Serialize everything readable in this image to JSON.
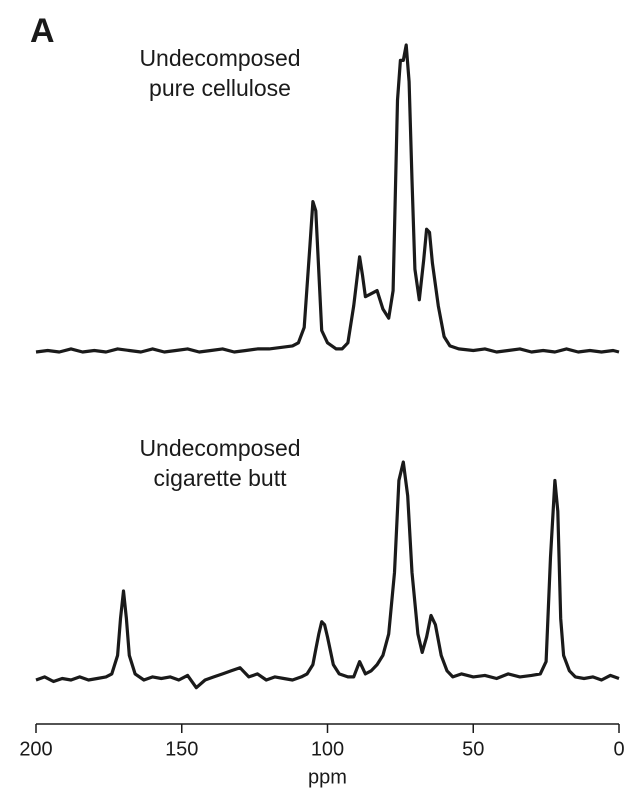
{
  "panel_label": "A",
  "chart_data": [
    {
      "type": "line",
      "annotation": [
        "Undecomposed",
        "pure cellulose"
      ],
      "color": "#1a1a1a",
      "xlim": [
        200,
        0
      ],
      "ylim": [
        0,
        100
      ],
      "x": [
        200,
        196,
        192,
        188,
        184,
        180,
        176,
        172,
        168,
        164,
        160,
        156,
        152,
        148,
        144,
        140,
        136,
        132,
        128,
        124,
        120,
        116,
        112,
        110,
        108,
        106,
        105,
        104,
        102,
        100,
        97,
        95,
        93,
        91,
        89,
        88,
        87,
        85,
        83,
        81,
        79,
        77.5,
        76,
        75,
        74,
        73,
        72,
        71,
        70,
        68.5,
        67,
        66,
        65,
        64,
        62,
        60,
        58,
        55,
        50,
        46,
        42,
        38,
        34,
        30,
        26,
        22,
        18,
        14,
        10,
        6,
        2,
        0
      ],
      "values": [
        0,
        0.5,
        0,
        1,
        0,
        0.5,
        0,
        1,
        0.5,
        0,
        1,
        0,
        0.5,
        1,
        0,
        0.5,
        1,
        0,
        0.5,
        1,
        1,
        1.5,
        2,
        3,
        8,
        35,
        49,
        46,
        7,
        3,
        1,
        1,
        3,
        15,
        31,
        25,
        18,
        19,
        20,
        14,
        11,
        20,
        82,
        95,
        95,
        100,
        88,
        56,
        27,
        17,
        30,
        40,
        39,
        29,
        15,
        5,
        2,
        1,
        0.5,
        1,
        0,
        0.5,
        1,
        0,
        0.5,
        0,
        1,
        0,
        0.5,
        0,
        0.5,
        0
      ]
    },
    {
      "type": "line",
      "annotation": [
        "Undecomposed",
        "cigarette butt"
      ],
      "color": "#1a1a1a",
      "xlim": [
        200,
        0
      ],
      "ylim": [
        0,
        100
      ],
      "xticks": [
        200,
        150,
        100,
        50,
        0
      ],
      "xlabel": "ppm",
      "x": [
        200,
        197,
        194,
        191,
        188,
        185,
        182,
        179,
        176,
        174,
        172,
        171,
        170,
        169,
        168,
        166,
        163,
        160,
        157,
        154,
        151,
        148,
        145,
        142,
        139,
        136,
        133,
        130,
        127,
        124,
        121,
        118,
        115,
        112,
        109,
        107,
        105,
        104,
        103,
        102,
        101,
        100,
        98,
        96,
        93,
        91,
        89,
        87,
        85,
        83,
        81,
        79,
        77,
        75.5,
        74,
        72.5,
        71,
        69,
        67.5,
        66,
        64.5,
        63,
        61,
        59,
        57,
        54,
        50,
        46,
        42,
        38,
        34,
        30,
        27,
        25,
        23.5,
        22,
        21,
        20,
        19,
        17,
        15,
        12,
        9,
        6,
        3,
        0
      ],
      "values": [
        0,
        1,
        -0.5,
        0.5,
        0,
        1,
        0,
        0.5,
        1,
        2,
        8,
        20,
        29,
        20,
        8,
        2,
        0,
        1,
        0.5,
        1,
        0,
        1.5,
        -2.5,
        0,
        1,
        2,
        3,
        4,
        1,
        2,
        0,
        1,
        0.5,
        0,
        1,
        2,
        5,
        10,
        15,
        19,
        18,
        14,
        5,
        2,
        1,
        1,
        6,
        2,
        3,
        5,
        8,
        15,
        35,
        65,
        71,
        60,
        35,
        15,
        9,
        14,
        21,
        18,
        8,
        3,
        1,
        2,
        1,
        1.5,
        0.5,
        2,
        1,
        1.5,
        2,
        6,
        40,
        65,
        55,
        20,
        8,
        3,
        1,
        0.5,
        1,
        0,
        1.5,
        0.5
      ]
    }
  ]
}
